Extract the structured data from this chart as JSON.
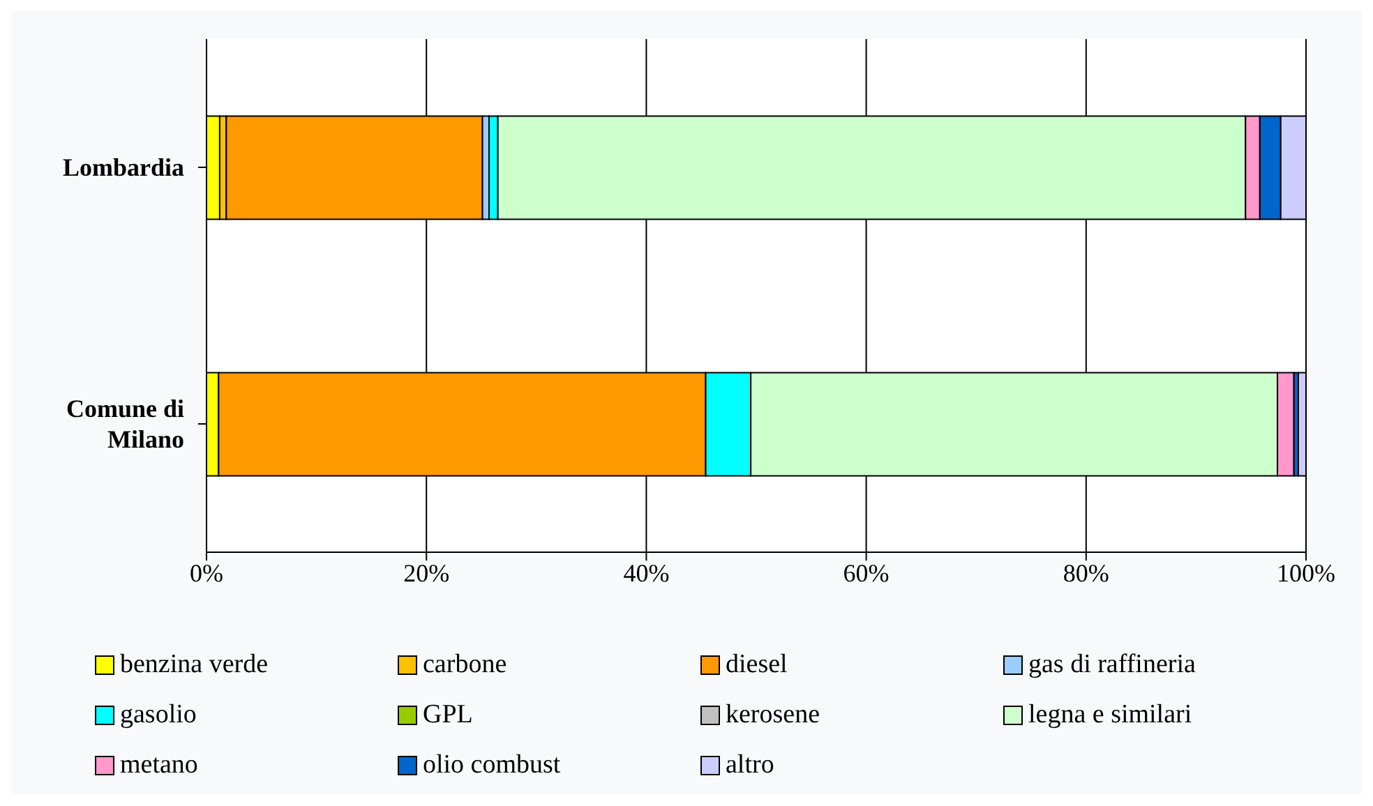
{
  "chart_data": {
    "type": "bar",
    "orientation": "horizontal",
    "stacked": true,
    "categories": [
      "Lombardia",
      "Comune di Milano"
    ],
    "series": [
      {
        "name": "benzina verde",
        "color": "#ffff00",
        "values": [
          1.2,
          1.1
        ]
      },
      {
        "name": "carbone",
        "color": "#ffc000",
        "values": [
          0.6,
          0
        ]
      },
      {
        "name": "diesel",
        "color": "#ff9900",
        "values": [
          23.3,
          44.3
        ]
      },
      {
        "name": "gas di raffineria",
        "color": "#99ccff",
        "values": [
          0.6,
          0
        ]
      },
      {
        "name": "gasolio",
        "color": "#00ffff",
        "values": [
          0.8,
          4.1
        ]
      },
      {
        "name": "GPL",
        "color": "#99cc00",
        "values": [
          0,
          0
        ]
      },
      {
        "name": "kerosene",
        "color": "#c0c0c0",
        "values": [
          0,
          0
        ]
      },
      {
        "name": "legna e similari",
        "color": "#ccffcc",
        "values": [
          68,
          47.9
        ]
      },
      {
        "name": "metano",
        "color": "#ff99cc",
        "values": [
          1.3,
          1.5
        ]
      },
      {
        "name": "olio combust",
        "color": "#0066cc",
        "values": [
          1.9,
          0.4
        ]
      },
      {
        "name": "altro",
        "color": "#ccccff",
        "values": [
          2.3,
          0.7
        ]
      }
    ],
    "xlim": [
      0,
      100
    ],
    "xticks": [
      {
        "value": 0,
        "label": "0%"
      },
      {
        "value": 20,
        "label": "20%"
      },
      {
        "value": 40,
        "label": "40%"
      },
      {
        "value": 60,
        "label": "60%"
      },
      {
        "value": 80,
        "label": "80%"
      },
      {
        "value": 100,
        "label": "100%"
      }
    ],
    "grid": "x",
    "legend": "bottom"
  }
}
